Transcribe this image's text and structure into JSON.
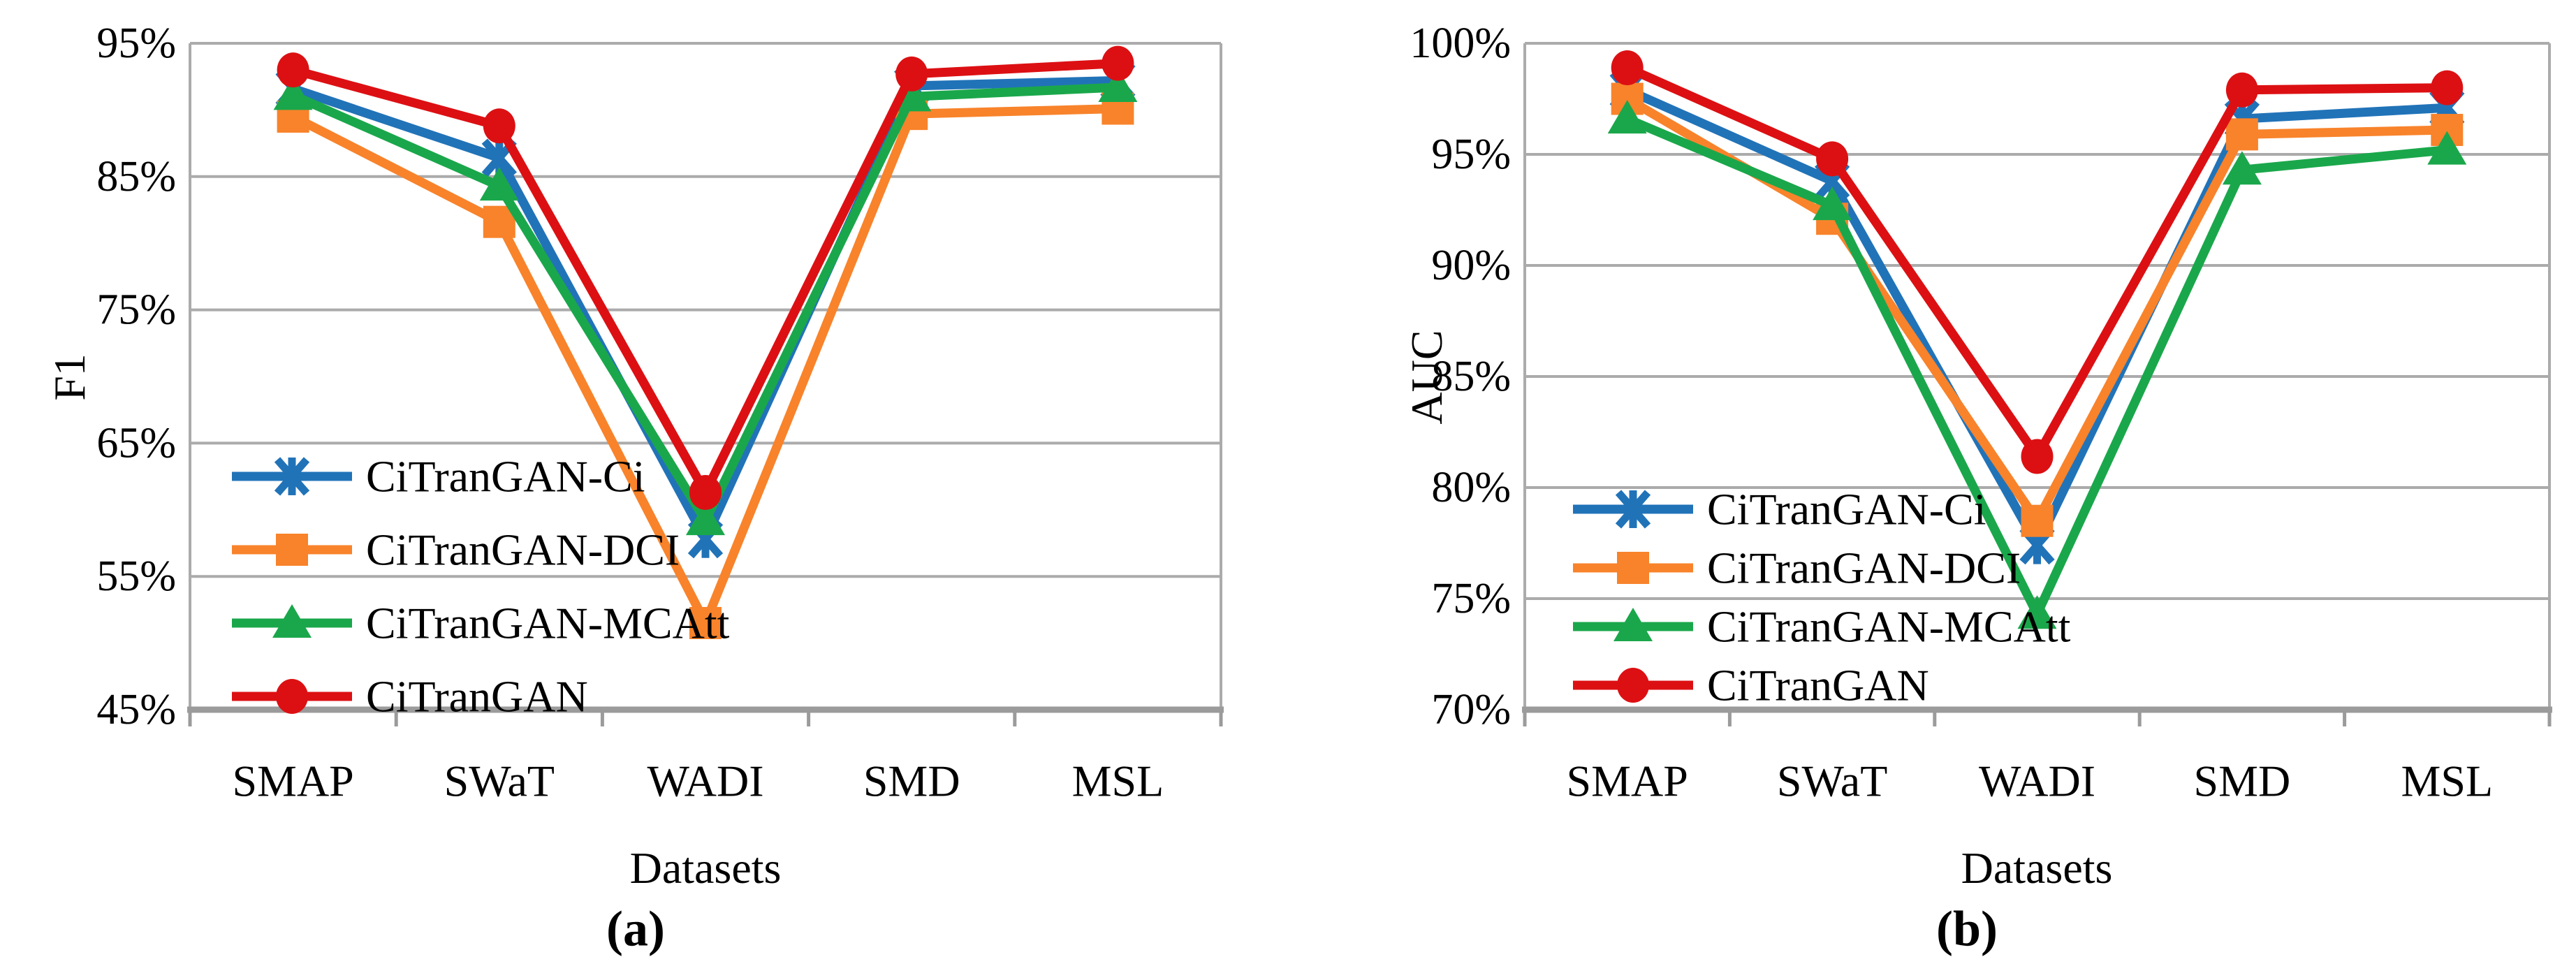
{
  "figure_type": "dual-line-chart-figure",
  "chart_data": [
    {
      "type": "line",
      "id": "a",
      "caption": "(a)",
      "ylabel": "F1",
      "xlabel": "Datasets",
      "categories": [
        "SMAP",
        "SWaT",
        "WADI",
        "SMD",
        "MSL"
      ],
      "y_axis": {
        "min": 45,
        "max": 95,
        "step": 10,
        "unit": "%"
      },
      "y_ticks": [
        "95%",
        "85%",
        "75%",
        "65%",
        "55%",
        "45%"
      ],
      "grid": "horizontal",
      "legend_position": "inside-lower-left",
      "series": [
        {
          "name": "CiTranGAN-Ci",
          "color": "#2173B8",
          "marker": "asterisk",
          "values": [
            91.6,
            86.4,
            57.8,
            91.8,
            92.2
          ]
        },
        {
          "name": "CiTranGAN-DCI",
          "color": "#F8832B",
          "marker": "square",
          "values": [
            89.5,
            81.6,
            51.5,
            89.7,
            90.1
          ]
        },
        {
          "name": "CiTranGAN-MCAtt",
          "color": "#1AA74B",
          "marker": "triangle",
          "values": [
            91.1,
            84.3,
            59.2,
            91.0,
            91.7
          ]
        },
        {
          "name": "CiTranGAN",
          "color": "#DC1013",
          "marker": "circle",
          "values": [
            93.0,
            88.8,
            61.3,
            92.7,
            93.5
          ]
        }
      ]
    },
    {
      "type": "line",
      "id": "b",
      "caption": "(b)",
      "ylabel": "AUC",
      "xlabel": "Datasets",
      "categories": [
        "SMAP",
        "SWaT",
        "WADI",
        "SMD",
        "MSL"
      ],
      "y_axis": {
        "min": 70,
        "max": 100,
        "step": 5,
        "unit": "%"
      },
      "y_ticks": [
        "100%",
        "95%",
        "90%",
        "85%",
        "80%",
        "75%",
        "70%"
      ],
      "grid": "horizontal",
      "legend_position": "inside-lower-left",
      "series": [
        {
          "name": "CiTranGAN-Ci",
          "color": "#2173B8",
          "marker": "asterisk",
          "values": [
            97.9,
            93.8,
            77.4,
            96.6,
            97.1
          ]
        },
        {
          "name": "CiTranGAN-DCI",
          "color": "#F8832B",
          "marker": "square",
          "values": [
            97.5,
            92.1,
            78.5,
            95.9,
            96.1
          ]
        },
        {
          "name": "CiTranGAN-MCAtt",
          "color": "#1AA74B",
          "marker": "triangle",
          "values": [
            96.6,
            92.7,
            74.3,
            94.3,
            95.2
          ]
        },
        {
          "name": "CiTranGAN",
          "color": "#DC1013",
          "marker": "circle",
          "values": [
            98.9,
            94.8,
            81.4,
            97.9,
            98.0
          ]
        }
      ]
    }
  ],
  "colors": {
    "gridline": "#ABABAB",
    "frame": "#ABABAB",
    "axis_line": "#9B9B9B",
    "text": "#000000",
    "background": "#FFFFFF"
  },
  "charts": [
    {
      "ylabel": "F1",
      "xlabel": "Datasets",
      "caption": "(a)"
    },
    {
      "ylabel": "AUC",
      "xlabel": "Datasets",
      "caption": "(b)"
    }
  ]
}
